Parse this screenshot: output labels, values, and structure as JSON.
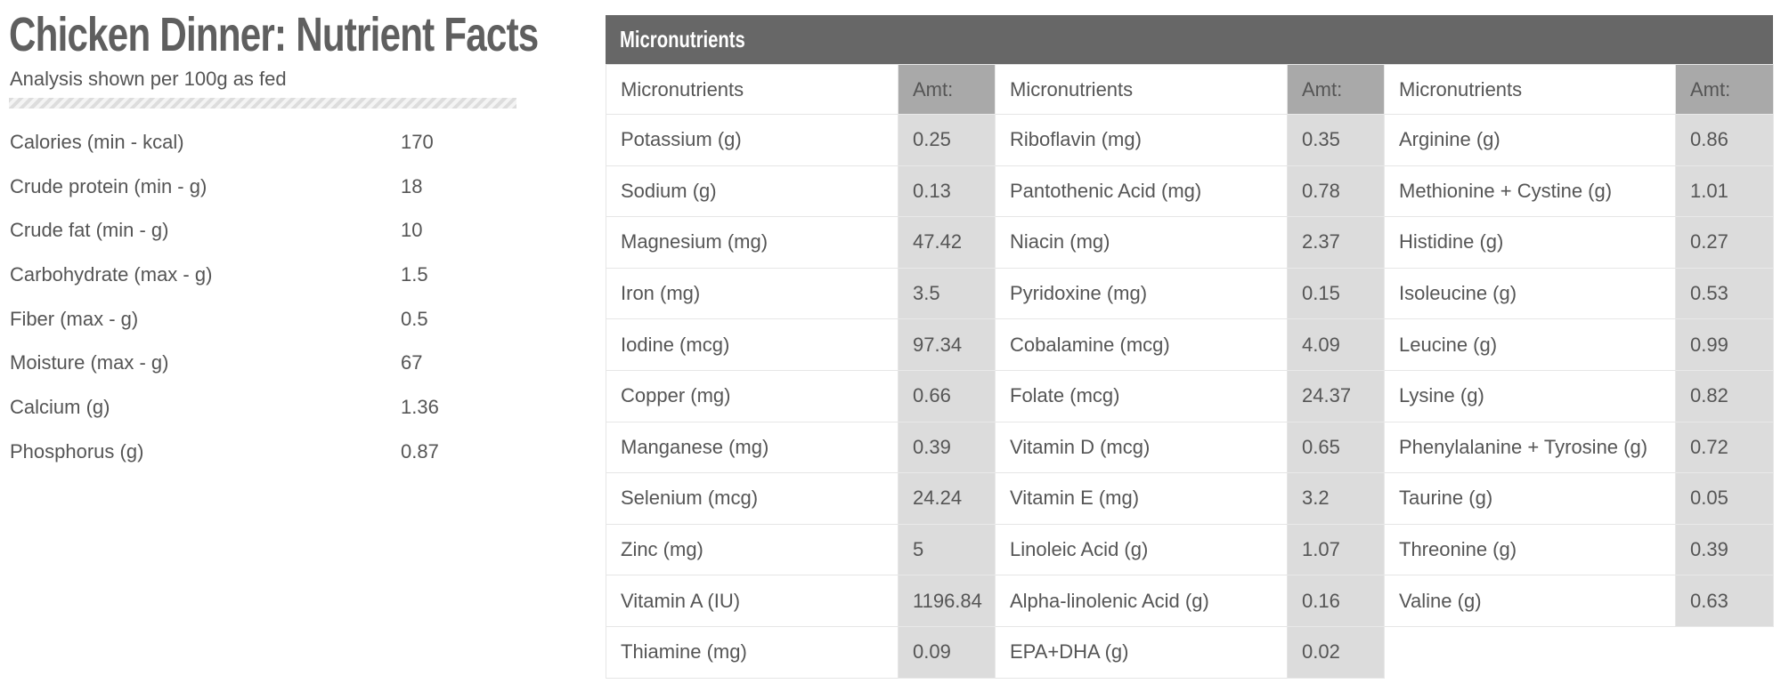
{
  "header": {
    "title": "Chicken Dinner: Nutrient Facts",
    "subtitle": "Analysis shown per 100g as fed"
  },
  "facts": [
    [
      "Calories (min - kcal)",
      "170"
    ],
    [
      "Crude protein (min - g)",
      "18"
    ],
    [
      "Crude fat (min - g)",
      "10"
    ],
    [
      "Carbohydrate (max - g)",
      "1.5"
    ],
    [
      "Fiber (max - g)",
      "0.5"
    ],
    [
      "Moisture (max - g)",
      "67"
    ],
    [
      "Calcium (g)",
      "1.36"
    ],
    [
      "Phosphorus (g)",
      "0.87"
    ]
  ],
  "table": {
    "title": "Micronutrients",
    "columns": [
      "Micronutrients",
      "Amt:",
      "Micronutrients",
      "Amt:",
      "Micronutrients",
      "Amt:"
    ],
    "rows": [
      [
        "Potassium (g)",
        "0.25",
        "Riboflavin (mg)",
        "0.35",
        "Arginine (g)",
        "0.86"
      ],
      [
        "Sodium (g)",
        "0.13",
        "Pantothenic Acid (mg)",
        "0.78",
        "Methionine + Cystine (g)",
        "1.01"
      ],
      [
        "Magnesium (mg)",
        "47.42",
        "Niacin (mg)",
        "2.37",
        "Histidine (g)",
        "0.27"
      ],
      [
        "Iron  (mg)",
        "3.5",
        "Pyridoxine (mg)",
        "0.15",
        "Isoleucine (g)",
        "0.53"
      ],
      [
        "Iodine (mcg)",
        "97.34",
        "Cobalamine (mcg)",
        "4.09",
        "Leucine (g)",
        "0.99"
      ],
      [
        "Copper (mg)",
        "0.66",
        "Folate (mcg)",
        "24.37",
        "Lysine (g)",
        "0.82"
      ],
      [
        "Manganese (mg)",
        "0.39",
        "Vitamin D (mcg)",
        "0.65",
        "Phenylalanine + Tyrosine (g)",
        "0.72"
      ],
      [
        "Selenium (mcg)",
        "24.24",
        "Vitamin E (mg)",
        "3.2",
        "Taurine (g)",
        "0.05"
      ],
      [
        "Zinc (mg)",
        "5",
        "Linoleic Acid (g)",
        "1.07",
        "Threonine (g)",
        "0.39"
      ],
      [
        "Vitamin A (IU)",
        "1196.84",
        "Alpha-linolenic Acid (g)",
        "0.16",
        "Valine (g)",
        "0.63"
      ],
      [
        "Thiamine (mg)",
        "0.09",
        "EPA+DHA (g)",
        "0.02"
      ]
    ]
  }
}
